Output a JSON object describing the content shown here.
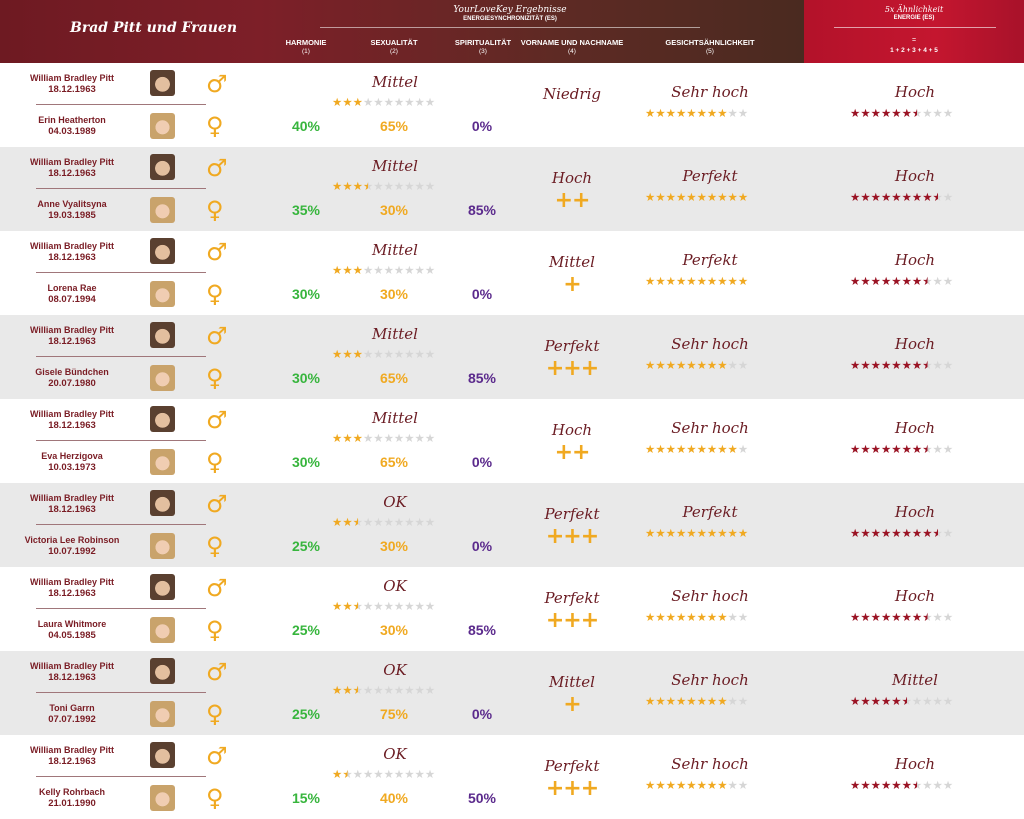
{
  "header": {
    "title": "Brad Pitt und Frauen",
    "mid_title": "YourLoveKey Ergebnisse",
    "mid_subtitle": "ENERGIESYNCHRONIZITÄT (ES)",
    "columns": [
      {
        "label": "HARMONIE",
        "num": "(1)"
      },
      {
        "label": "SEXUALITÄT",
        "num": "(2)"
      },
      {
        "label": "SPIRITUALITÄT",
        "num": "(3)"
      },
      {
        "label": "VORNAME UND NACHNAME",
        "num": "(4)"
      },
      {
        "label": "GESICHTSÄHNLICHKEIT",
        "num": "(5)"
      }
    ],
    "right_title": "5x Ähnlichkeit",
    "right_subtitle": "ENERGIE (ES)",
    "right_eq": "=",
    "right_formula": "1 + 2 + 3 + 4 + 5"
  },
  "colors": {
    "gold": "#f0a921",
    "dark_red": "#9a1324",
    "grey_star": "#d6d6d6",
    "green": "#37b53d",
    "purple": "#5b2a8c"
  },
  "icons": {
    "male": "male-symbol-icon",
    "female": "female-symbol-icon"
  },
  "rows": [
    {
      "male_name": "William Bradley Pitt",
      "male_date": "18.12.1963",
      "female_name": "Erin Heatherton",
      "female_date": "04.03.1989",
      "harmony_word": "Mittel",
      "harmony_stars": 3,
      "harmonie": "40%",
      "sexualitaet": "65%",
      "spiritualitaet": "0%",
      "name_word": "Niedrig",
      "name_plus": "",
      "face_word": "Sehr hoch",
      "face_stars": 8,
      "energy_word": "Hoch",
      "energy_stars": 6.5
    },
    {
      "male_name": "William Bradley Pitt",
      "male_date": "18.12.1963",
      "female_name": "Anne Vyalitsyna",
      "female_date": "19.03.1985",
      "harmony_word": "Mittel",
      "harmony_stars": 3.5,
      "harmonie": "35%",
      "sexualitaet": "30%",
      "spiritualitaet": "85%",
      "name_word": "Hoch",
      "name_plus": "++",
      "face_word": "Perfekt",
      "face_stars": 10,
      "energy_word": "Hoch",
      "energy_stars": 8.5
    },
    {
      "male_name": "William Bradley Pitt",
      "male_date": "18.12.1963",
      "female_name": "Lorena Rae",
      "female_date": "08.07.1994",
      "harmony_word": "Mittel",
      "harmony_stars": 3,
      "harmonie": "30%",
      "sexualitaet": "30%",
      "spiritualitaet": "0%",
      "name_word": "Mittel",
      "name_plus": "+",
      "face_word": "Perfekt",
      "face_stars": 10,
      "energy_word": "Hoch",
      "energy_stars": 7.5
    },
    {
      "male_name": "William Bradley Pitt",
      "male_date": "18.12.1963",
      "female_name": "Gisele Bündchen",
      "female_date": "20.07.1980",
      "harmony_word": "Mittel",
      "harmony_stars": 3,
      "harmonie": "30%",
      "sexualitaet": "65%",
      "spiritualitaet": "85%",
      "name_word": "Perfekt",
      "name_plus": "+++",
      "face_word": "Sehr hoch",
      "face_stars": 8,
      "energy_word": "Hoch",
      "energy_stars": 7.5
    },
    {
      "male_name": "William Bradley Pitt",
      "male_date": "18.12.1963",
      "female_name": "Eva Herzigova",
      "female_date": "10.03.1973",
      "harmony_word": "Mittel",
      "harmony_stars": 3,
      "harmonie": "30%",
      "sexualitaet": "65%",
      "spiritualitaet": "0%",
      "name_word": "Hoch",
      "name_plus": "++",
      "face_word": "Sehr hoch",
      "face_stars": 9,
      "energy_word": "Hoch",
      "energy_stars": 7.5
    },
    {
      "male_name": "William Bradley Pitt",
      "male_date": "18.12.1963",
      "female_name": "Victoria Lee Robinson",
      "female_date": "10.07.1992",
      "harmony_word": "OK",
      "harmony_stars": 2.5,
      "harmonie": "25%",
      "sexualitaet": "30%",
      "spiritualitaet": "0%",
      "name_word": "Perfekt",
      "name_plus": "+++",
      "face_word": "Perfekt",
      "face_stars": 10,
      "energy_word": "Hoch",
      "energy_stars": 8.5
    },
    {
      "male_name": "William Bradley Pitt",
      "male_date": "18.12.1963",
      "female_name": "Laura Whitmore",
      "female_date": "04.05.1985",
      "harmony_word": "OK",
      "harmony_stars": 2.5,
      "harmonie": "25%",
      "sexualitaet": "30%",
      "spiritualitaet": "85%",
      "name_word": "Perfekt",
      "name_plus": "+++",
      "face_word": "Sehr hoch",
      "face_stars": 8,
      "energy_word": "Hoch",
      "energy_stars": 7.5
    },
    {
      "male_name": "William Bradley Pitt",
      "male_date": "18.12.1963",
      "female_name": "Toni Garrn",
      "female_date": "07.07.1992",
      "harmony_word": "OK",
      "harmony_stars": 2.5,
      "harmonie": "25%",
      "sexualitaet": "75%",
      "spiritualitaet": "0%",
      "name_word": "Mittel",
      "name_plus": "+",
      "face_word": "Sehr hoch",
      "face_stars": 8,
      "energy_word": "Mittel",
      "energy_stars": 5.5
    },
    {
      "male_name": "William Bradley Pitt",
      "male_date": "18.12.1963",
      "female_name": "Kelly Rohrbach",
      "female_date": "21.01.1990",
      "harmony_word": "OK",
      "harmony_stars": 1.5,
      "harmonie": "15%",
      "sexualitaet": "40%",
      "spiritualitaet": "50%",
      "name_word": "Perfekt",
      "name_plus": "+++",
      "face_word": "Sehr hoch",
      "face_stars": 8,
      "energy_word": "Hoch",
      "energy_stars": 6.5
    }
  ]
}
